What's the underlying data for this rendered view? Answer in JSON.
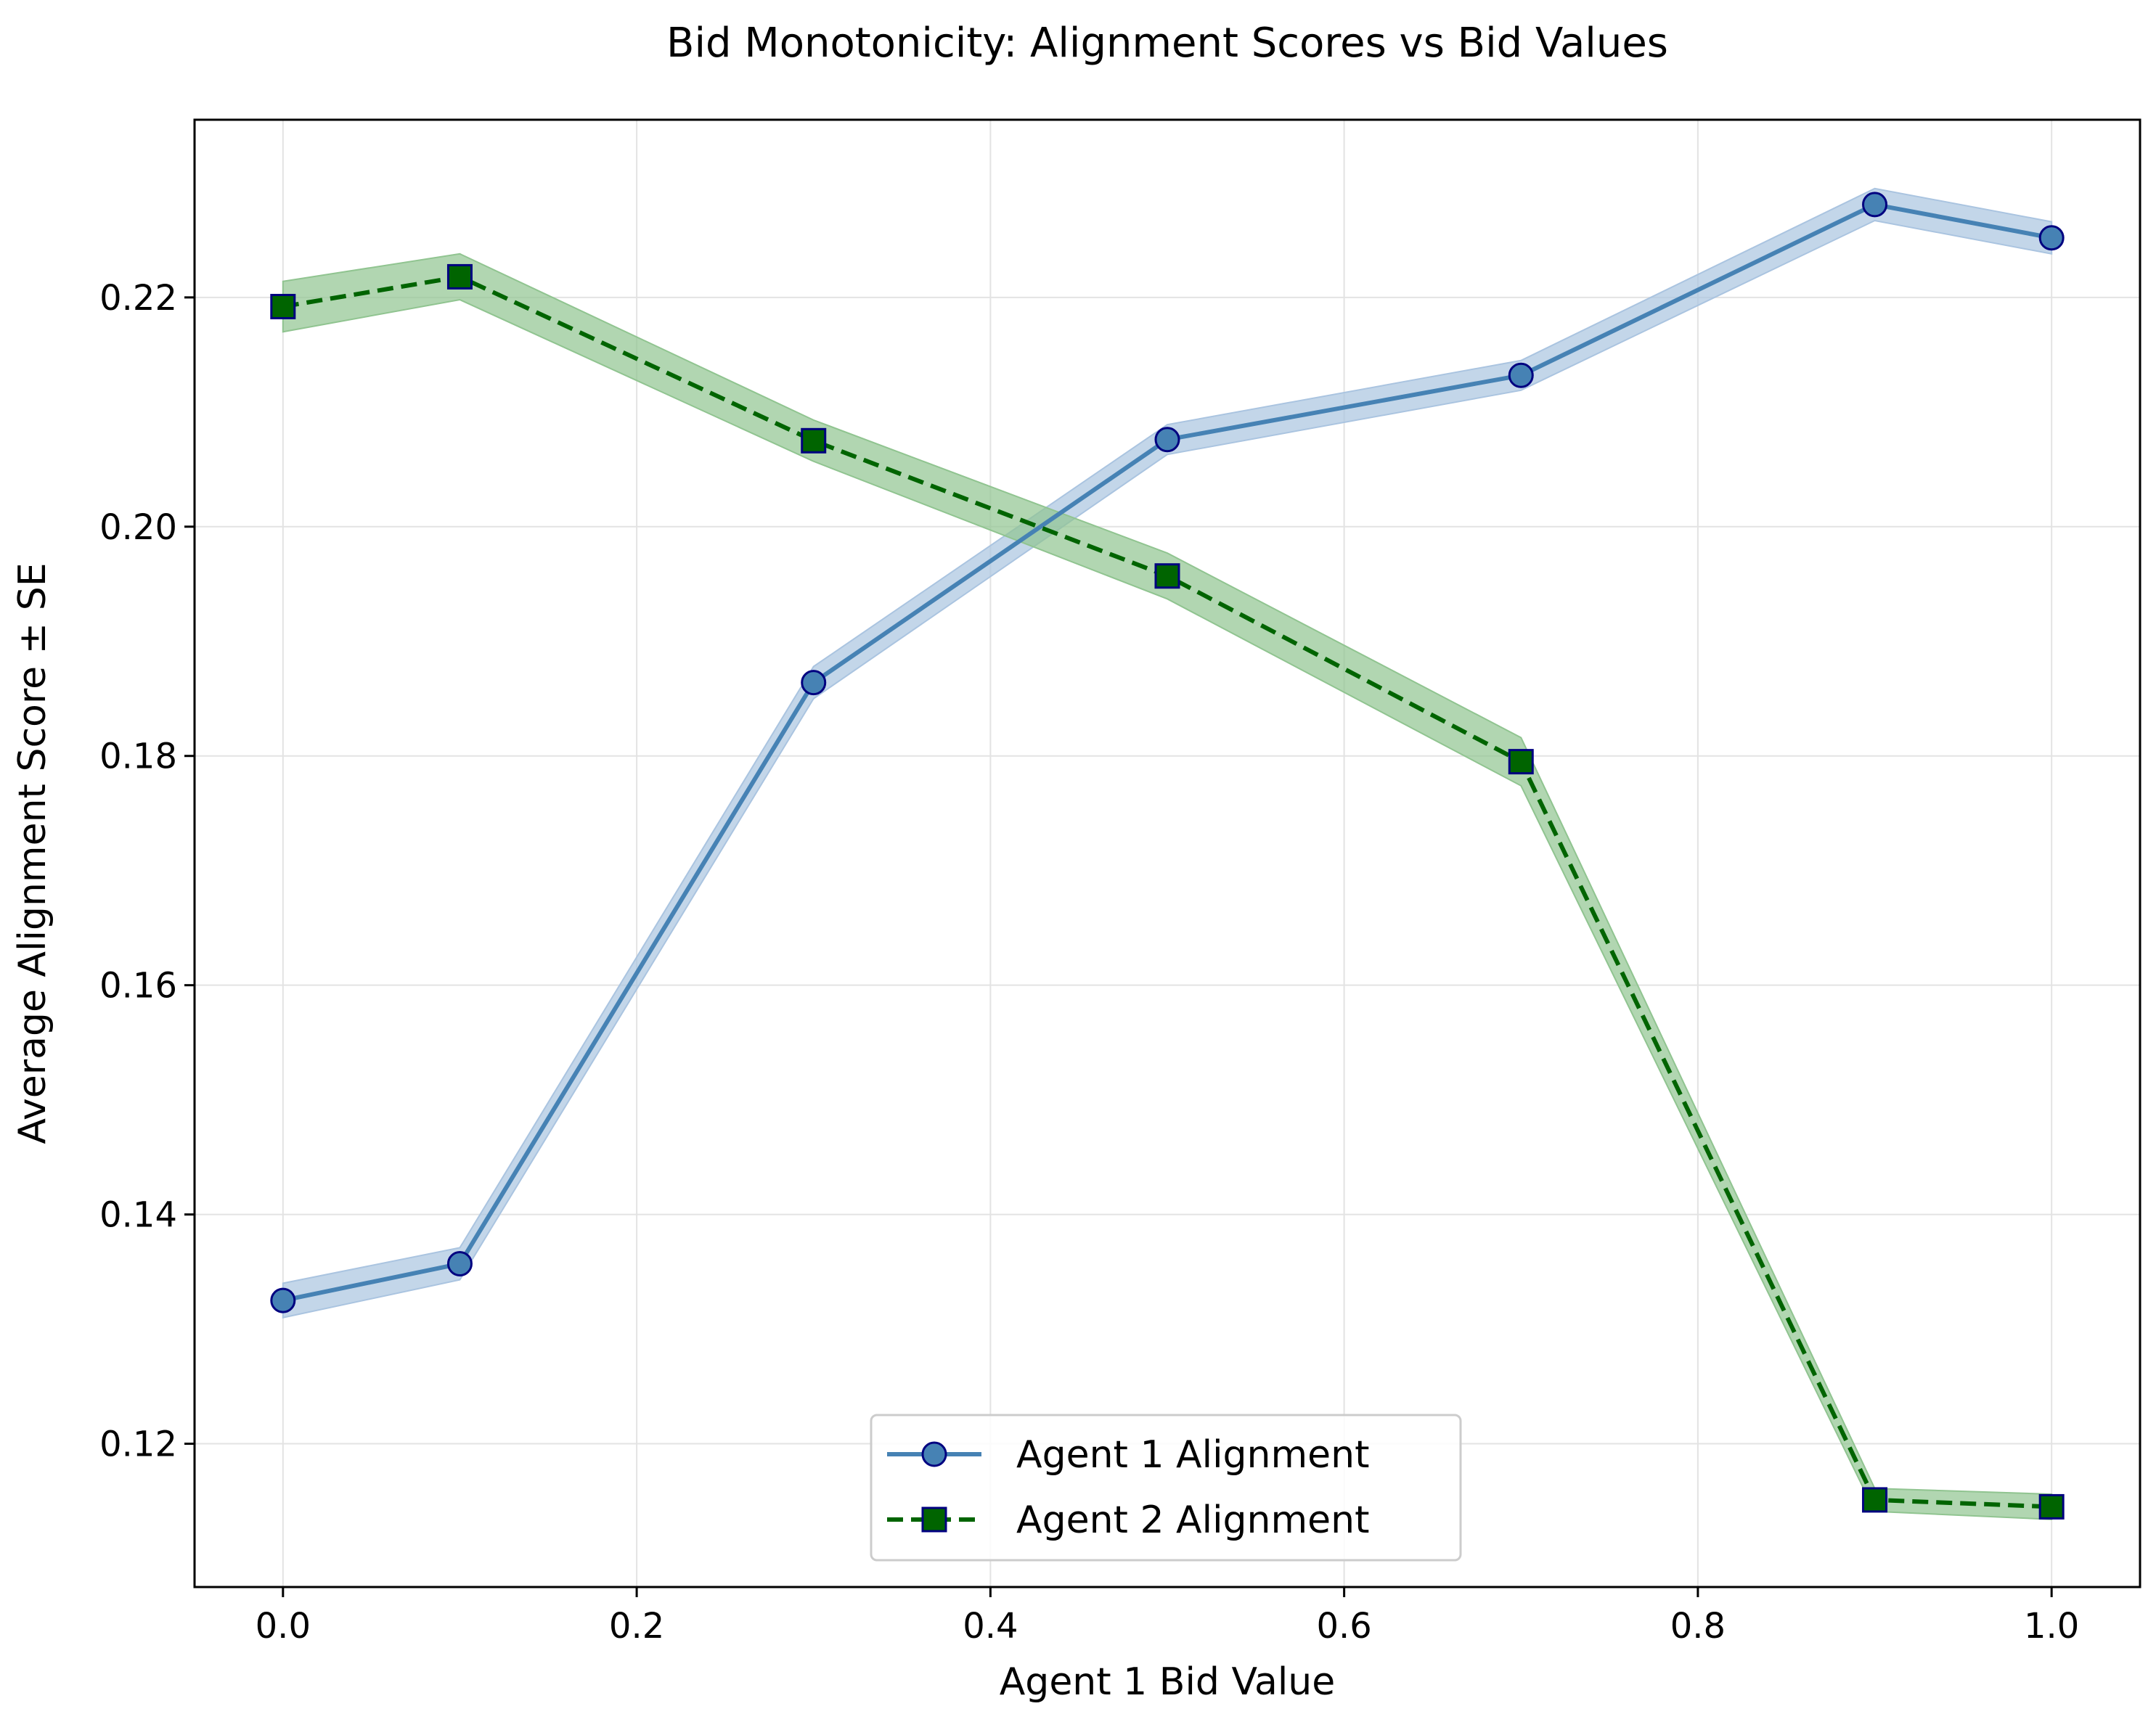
{
  "chart_data": {
    "type": "line",
    "title": "Bid Monotonicity: Alignment Scores vs Bid Values",
    "xlabel": "Agent 1 Bid Value",
    "ylabel": "Average Alignment Score ± SE",
    "xlim": [
      -0.05,
      1.05
    ],
    "ylim": [
      0.1075,
      0.2355
    ],
    "xticks": [
      0.0,
      0.2,
      0.4,
      0.6,
      0.8,
      1.0
    ],
    "xtick_labels": [
      "0.0",
      "0.2",
      "0.4",
      "0.6",
      "0.8",
      "1.0"
    ],
    "yticks": [
      0.12,
      0.14,
      0.16,
      0.18,
      0.2,
      0.22
    ],
    "ytick_labels": [
      "0.12",
      "0.14",
      "0.16",
      "0.18",
      "0.20",
      "0.22"
    ],
    "grid": true,
    "legend_position": "lower center",
    "x": [
      0.0,
      0.1,
      0.3,
      0.5,
      0.7,
      0.9,
      1.0
    ],
    "series": [
      {
        "name": "Agent 1 Alignment",
        "values": [
          0.1325,
          0.1357,
          0.1864,
          0.2076,
          0.2132,
          0.2281,
          0.2252
        ],
        "se": [
          0.0015,
          0.0014,
          0.0014,
          0.0013,
          0.0013,
          0.0014,
          0.0014
        ],
        "line_color": "#4682b4",
        "band_color": "#aac4e0",
        "marker": "circle",
        "marker_face": "#4682b4",
        "marker_edge": "#000080",
        "line_style": "solid"
      },
      {
        "name": "Agent 2 Alignment",
        "values": [
          0.2192,
          0.2218,
          0.2075,
          0.1957,
          0.1795,
          0.1151,
          0.1145
        ],
        "se": [
          0.0022,
          0.002,
          0.0018,
          0.002,
          0.0021,
          0.001,
          0.0011
        ],
        "line_color": "#006400",
        "band_color": "#90c490",
        "marker": "square",
        "marker_face": "#006400",
        "marker_edge": "#000080",
        "line_style": "dashed"
      }
    ]
  }
}
